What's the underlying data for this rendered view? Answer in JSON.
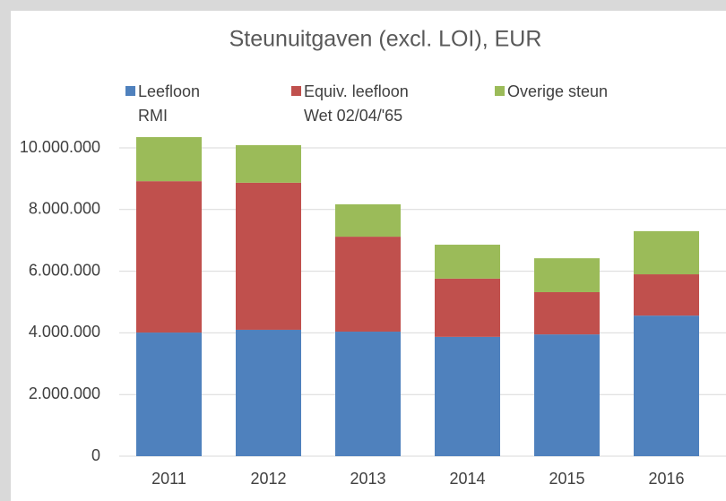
{
  "chart_data": {
    "type": "stacked_bar",
    "title": "Steunuitgaven (excl. LOI), EUR",
    "categories": [
      "2011",
      "2012",
      "2013",
      "2014",
      "2015",
      "2016"
    ],
    "series": [
      {
        "name": "Leefloon\nRMI",
        "color": "#4f81bd",
        "values": [
          4010000,
          4100000,
          4040000,
          3870000,
          3950000,
          4560000
        ]
      },
      {
        "name": "Equiv. leefloon\nWet 02/04/'65",
        "color": "#c0504d",
        "values": [
          4910000,
          4770000,
          3080000,
          1890000,
          1370000,
          1340000
        ]
      },
      {
        "name": "Overige steun",
        "color": "#9bbb59",
        "values": [
          1430000,
          1220000,
          1050000,
          1100000,
          1100000,
          1400000
        ]
      }
    ],
    "ylim": [
      0,
      10000000
    ],
    "yticks": [
      0,
      {
        "value": 2000000,
        "label": "2.000.000"
      },
      {
        "value": 4000000,
        "label": "4.000.000"
      },
      {
        "value": 6000000,
        "label": "6.000.000"
      },
      {
        "value": 8000000,
        "label": "8.000.000"
      },
      {
        "value": 10000000,
        "label": "10.000.000"
      }
    ],
    "grid": true,
    "legend": "top"
  }
}
